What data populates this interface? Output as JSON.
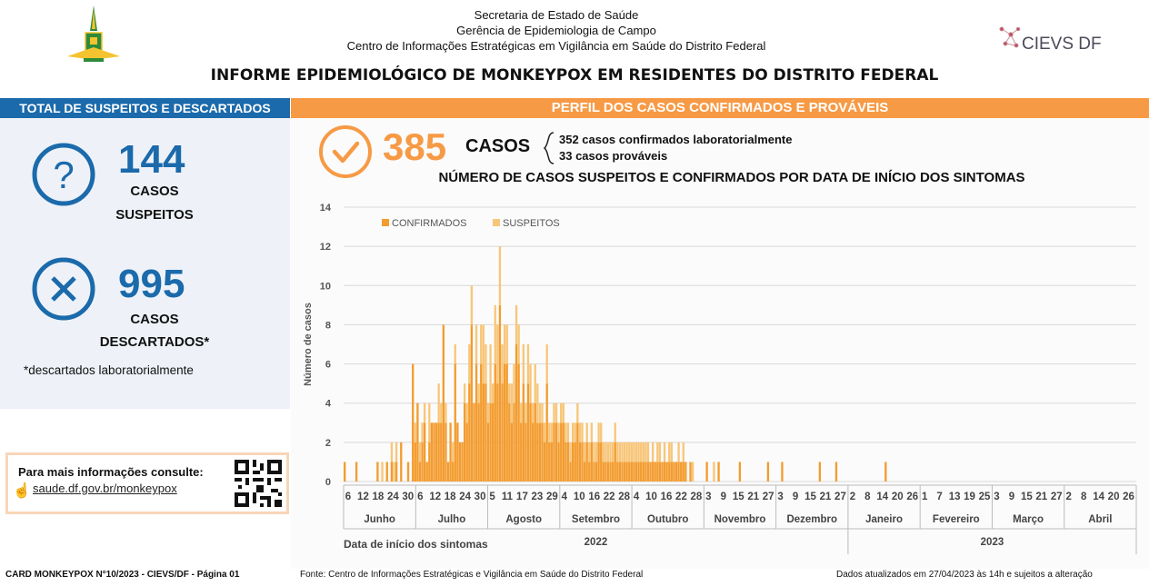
{
  "header": {
    "line1": "Secretaria de Estado de Saúde",
    "line2": "Gerência de Epidemiologia de Campo",
    "line3": "Centro de Informações Estratégicas em Vigilância em Saúde do Distrito Federal",
    "title": "INFORME EPIDEMIOLÓGICO DE MONKEYPOX EM RESIDENTES DO DISTRITO FEDERAL",
    "logo_right": "CIEVS DF"
  },
  "left": {
    "band": "TOTAL DE SUSPEITOS E DESCARTADOS",
    "suspeitos_num": "144",
    "suspeitos_l1": "CASOS",
    "suspeitos_l2": "SUSPEITOS",
    "descartados_num": "995",
    "descartados_l1": "CASOS",
    "descartados_l2": "DESCARTADOS*",
    "note": "*descartados laboratorialmente",
    "info_label": "Para mais informações consulte:",
    "info_link": "saude.df.gov.br/monkeypox"
  },
  "right": {
    "band": "PERFIL DOS CASOS CONFIRMADOS E PROVÁVEIS",
    "total": "385",
    "total_label": "CASOS",
    "detail1": "352 casos confirmados laboratorialmente",
    "detail2": "33 casos prováveis"
  },
  "footer": {
    "left": "CARD MONKEYPOX N°10/2023 - CIEVS/DF - Página 01",
    "center": "Fonte: Centro de Informações Estratégicas e Vigilância em Saúde do Distrito Federal",
    "right": "Dados atualizados em 27/04/2023 às 14h e sujeitos a alteração"
  },
  "colors": {
    "confirmed": "#f39c2f",
    "suspect": "#f8c67a",
    "blue": "#1b6aab",
    "orange": "#f79a45"
  },
  "chart_data": {
    "type": "bar",
    "stacked": true,
    "title": "NÚMERO DE CASOS SUSPEITOS E CONFIRMADOS POR DATA DE INÍCIO DOS SINTOMAS",
    "ylabel": "Número de casos",
    "xlabel": "Data de início dos sintomas",
    "ylim": [
      0,
      14
    ],
    "yticks": [
      0,
      2,
      4,
      6,
      8,
      10,
      12,
      14
    ],
    "legend": [
      "CONFIRMADOS",
      "SUSPEITOS"
    ],
    "legend_position": "top-left",
    "months": [
      {
        "name": "Junho",
        "ticks": [
          "6",
          "12",
          "18",
          "24",
          "30"
        ]
      },
      {
        "name": "Julho",
        "ticks": [
          "6",
          "12",
          "18",
          "24",
          "30"
        ]
      },
      {
        "name": "Agosto",
        "ticks": [
          "5",
          "11",
          "17",
          "23",
          "29"
        ]
      },
      {
        "name": "Setembro",
        "ticks": [
          "4",
          "10",
          "16",
          "22",
          "28"
        ]
      },
      {
        "name": "Outubro",
        "ticks": [
          "4",
          "10",
          "16",
          "22",
          "28"
        ]
      },
      {
        "name": "Novembro",
        "ticks": [
          "3",
          "9",
          "15",
          "21",
          "27"
        ]
      },
      {
        "name": "Dezembro",
        "ticks": [
          "3",
          "9",
          "15",
          "21",
          "27"
        ]
      },
      {
        "name": "Janeiro",
        "ticks": [
          "2",
          "8",
          "14",
          "20",
          "26"
        ]
      },
      {
        "name": "Fevereiro",
        "ticks": [
          "1",
          "7",
          "13",
          "19",
          "25"
        ]
      },
      {
        "name": "Março",
        "ticks": [
          "3",
          "9",
          "15",
          "21",
          "27"
        ]
      },
      {
        "name": "Abril",
        "ticks": [
          "2",
          "8",
          "14",
          "20",
          "26"
        ]
      }
    ],
    "years": [
      {
        "name": "2022"
      },
      {
        "name": "2023"
      }
    ],
    "start_date": "2022-06-06",
    "series": [
      {
        "name": "CONFIRMADOS",
        "values": [
          1,
          0,
          0,
          0,
          0,
          1,
          0,
          0,
          0,
          0,
          0,
          0,
          0,
          0,
          1,
          0,
          0,
          0,
          1,
          0,
          1,
          0,
          1,
          0,
          2,
          0,
          0,
          1,
          0,
          6,
          2,
          4,
          1,
          2,
          3,
          1,
          2,
          3,
          3,
          3,
          3,
          3,
          8,
          3,
          1,
          3,
          1,
          6,
          3,
          2,
          2,
          4,
          3,
          5,
          8,
          4,
          6,
          4,
          6,
          5,
          5,
          3,
          4,
          4,
          6,
          5,
          9,
          5,
          6,
          6,
          4,
          3,
          4,
          7,
          6,
          3,
          5,
          3,
          5,
          4,
          3,
          4,
          3,
          3,
          3,
          2,
          5,
          2,
          2,
          3,
          3,
          2,
          3,
          3,
          2,
          2,
          1,
          2,
          2,
          3,
          2,
          2,
          1,
          2,
          1,
          2,
          1,
          1,
          2,
          2,
          1,
          1,
          1,
          1,
          1,
          2,
          1,
          1,
          1,
          1,
          1,
          1,
          1,
          1,
          1,
          1,
          1,
          1,
          1,
          1,
          1,
          1,
          1,
          1,
          1,
          1,
          1,
          1,
          1,
          1,
          1,
          1,
          1,
          1,
          1,
          1,
          0,
          1,
          0,
          0,
          0,
          0,
          0,
          0,
          1,
          0,
          0,
          0,
          0,
          1,
          0,
          0,
          0,
          0,
          0,
          0,
          0,
          0,
          1,
          0,
          0,
          0,
          0,
          0,
          0,
          0,
          0,
          0,
          0,
          0,
          1,
          0,
          0,
          0,
          0,
          0,
          1,
          0,
          0,
          0,
          0,
          0,
          0,
          0,
          0,
          0,
          0,
          0,
          0,
          0,
          0,
          0,
          1,
          0,
          0,
          0,
          0,
          0,
          0,
          1,
          0,
          0,
          0,
          0,
          0,
          0,
          0,
          0,
          0,
          0,
          0,
          0,
          0,
          0,
          0,
          0,
          0,
          0,
          0,
          0,
          1,
          0,
          0,
          0,
          0,
          0,
          0,
          0,
          0,
          0,
          0,
          0,
          0,
          0,
          0,
          0,
          0,
          0,
          0,
          0,
          0,
          0,
          0,
          0,
          0,
          0,
          0,
          0,
          0,
          0,
          0,
          0,
          0,
          0,
          0,
          0,
          0,
          0,
          0,
          0,
          0,
          0,
          0,
          0,
          0,
          0,
          0,
          0,
          0,
          0,
          0,
          0,
          0,
          0,
          0,
          0,
          0,
          0,
          0,
          0,
          0,
          0,
          0,
          0,
          0,
          0,
          0,
          0,
          0,
          0,
          0,
          0,
          0,
          0,
          0,
          0,
          0,
          0,
          0,
          0,
          0,
          0,
          0,
          0,
          0,
          0,
          0,
          0,
          0,
          0,
          0,
          0,
          0,
          0,
          0,
          0,
          0,
          0,
          0,
          0,
          0,
          0,
          0,
          0,
          0,
          0,
          0
        ]
      },
      {
        "name": "SUSPEITOS",
        "values": [
          0,
          0,
          0,
          0,
          0,
          0,
          0,
          0,
          0,
          0,
          0,
          0,
          0,
          0,
          0,
          0,
          1,
          0,
          0,
          0,
          1,
          1,
          1,
          0,
          0,
          0,
          0,
          0,
          0,
          0,
          1,
          0,
          1,
          1,
          1,
          0,
          2,
          0,
          0,
          0,
          2,
          1,
          0,
          1,
          0,
          0,
          1,
          1,
          0,
          0,
          0,
          1,
          1,
          2,
          2,
          0,
          2,
          1,
          2,
          3,
          2,
          1,
          3,
          1,
          3,
          3,
          3,
          2,
          2,
          2,
          1,
          2,
          2,
          2,
          2,
          1,
          2,
          1,
          2,
          2,
          1,
          2,
          2,
          1,
          1,
          1,
          2,
          1,
          1,
          1,
          1,
          1,
          1,
          1,
          1,
          1,
          1,
          1,
          1,
          1,
          1,
          1,
          1,
          1,
          1,
          1,
          1,
          1,
          1,
          1,
          1,
          1,
          1,
          1,
          1,
          1,
          1,
          1,
          1,
          1,
          1,
          1,
          1,
          1,
          1,
          1,
          1,
          1,
          1,
          1,
          0,
          1,
          0,
          1,
          1,
          0,
          1,
          0,
          1,
          1,
          0,
          0,
          1,
          0,
          1,
          0,
          0,
          0,
          1,
          0,
          0,
          0,
          0,
          0,
          0,
          0,
          0,
          1,
          0,
          0,
          0,
          0,
          0,
          0,
          0,
          0,
          0,
          0,
          0,
          0,
          0,
          0,
          0,
          0,
          0,
          0,
          0,
          0,
          0,
          0,
          0,
          0,
          0,
          0,
          0,
          0,
          0,
          0,
          0,
          0,
          0,
          0,
          0,
          0,
          0,
          0,
          0,
          0,
          0,
          0,
          0,
          0,
          0,
          0,
          0,
          0,
          0,
          0,
          0,
          0,
          0,
          0,
          0,
          0,
          0,
          0,
          0,
          0,
          0,
          0,
          0,
          0,
          0,
          0,
          0,
          0,
          0,
          0,
          0,
          0,
          0,
          0,
          0,
          0,
          0,
          0,
          0,
          0,
          0,
          0,
          0,
          0,
          0,
          0,
          0,
          0,
          0,
          0,
          0,
          0,
          0,
          0,
          0,
          0,
          0,
          0,
          0,
          0,
          0,
          0,
          0,
          0,
          0,
          0,
          0,
          0,
          0,
          0,
          0,
          0,
          0,
          0,
          0,
          0,
          0,
          0,
          0,
          0,
          0,
          0,
          0,
          0,
          0,
          0,
          0,
          0,
          0,
          0,
          0,
          0,
          0,
          0,
          0,
          0,
          0,
          0,
          0,
          0,
          0,
          0,
          0,
          0,
          0,
          0,
          0,
          0,
          0,
          0,
          0,
          0,
          0,
          0,
          0,
          0,
          0,
          0,
          0,
          0,
          0,
          0,
          0,
          0,
          0,
          0,
          0,
          0,
          0,
          0,
          0,
          0
        ]
      }
    ]
  }
}
